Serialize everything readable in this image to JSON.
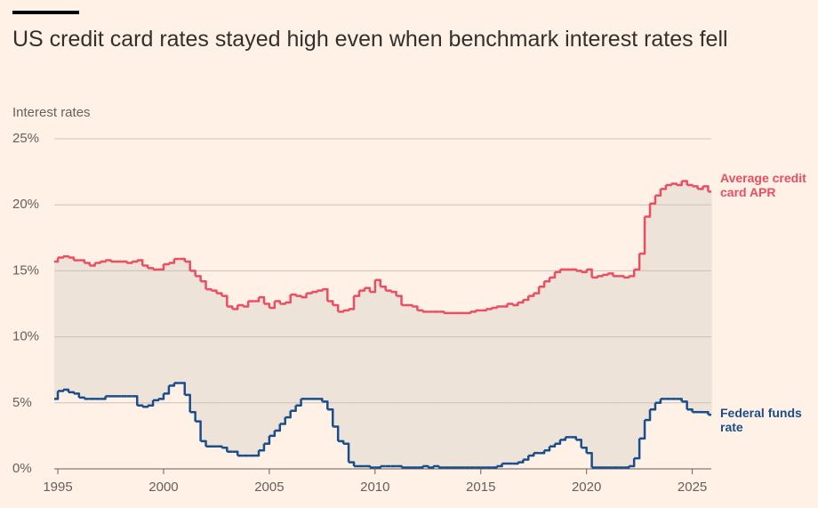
{
  "chart_data": {
    "type": "step",
    "title": "US credit card rates stayed high even when benchmark interest rates fell",
    "y_label": "Interest rates",
    "xlim": [
      1994.83,
      2025.9
    ],
    "xticks": [
      1995,
      2000,
      2005,
      2010,
      2015,
      2020,
      2025
    ],
    "ylim": [
      0,
      25
    ],
    "yticks": [
      {
        "value": 0,
        "label": "0%"
      },
      {
        "value": 5,
        "label": "5%"
      },
      {
        "value": 10,
        "label": "10%"
      },
      {
        "value": 15,
        "label": "15%"
      },
      {
        "value": 20,
        "label": "20%"
      },
      {
        "value": 25,
        "label": "25%"
      }
    ],
    "grid": true,
    "fill_between": "#ede3d9",
    "x_start": 1994.75,
    "x_step": 0.25,
    "series": [
      {
        "name": "Average credit card APR",
        "color": "#eb4d62",
        "values": [
          15.7,
          16.0,
          16.1,
          16.0,
          15.8,
          15.8,
          15.6,
          15.4,
          15.6,
          15.7,
          15.8,
          15.7,
          15.7,
          15.7,
          15.6,
          15.7,
          15.8,
          15.4,
          15.2,
          15.1,
          15.1,
          15.5,
          15.6,
          15.9,
          15.9,
          15.7,
          15.0,
          14.6,
          14.2,
          13.6,
          13.5,
          13.3,
          13.1,
          12.3,
          12.1,
          12.4,
          12.3,
          12.7,
          12.7,
          13.0,
          12.5,
          12.2,
          12.7,
          12.5,
          12.6,
          13.2,
          13.1,
          13.0,
          13.3,
          13.4,
          13.5,
          13.6,
          12.7,
          12.4,
          11.9,
          12.0,
          12.1,
          13.1,
          13.5,
          13.7,
          13.4,
          14.3,
          13.8,
          13.5,
          13.4,
          13.1,
          12.4,
          12.4,
          12.3,
          12.0,
          11.9,
          11.9,
          11.9,
          11.9,
          11.8,
          11.8,
          11.8,
          11.8,
          11.8,
          11.9,
          12.0,
          12.0,
          12.1,
          12.2,
          12.3,
          12.3,
          12.5,
          12.4,
          12.6,
          12.8,
          13.1,
          13.3,
          13.8,
          14.2,
          14.5,
          14.9,
          15.1,
          15.1,
          15.1,
          15.0,
          14.9,
          15.1,
          14.5,
          14.6,
          14.7,
          14.8,
          14.6,
          14.6,
          14.5,
          14.6,
          15.1,
          16.3,
          19.1,
          20.1,
          20.7,
          21.2,
          21.5,
          21.6,
          21.5,
          21.8,
          21.5,
          21.4,
          21.2,
          21.4,
          21.0
        ]
      },
      {
        "name": "Federal funds rate",
        "color": "#1a4d8c",
        "values": [
          5.3,
          5.9,
          6.0,
          5.8,
          5.7,
          5.4,
          5.3,
          5.3,
          5.3,
          5.3,
          5.5,
          5.5,
          5.5,
          5.5,
          5.5,
          5.5,
          4.8,
          4.7,
          4.8,
          5.2,
          5.3,
          5.7,
          6.3,
          6.5,
          6.5,
          5.6,
          4.3,
          3.6,
          2.1,
          1.7,
          1.7,
          1.7,
          1.6,
          1.3,
          1.3,
          1.0,
          1.0,
          1.0,
          1.0,
          1.4,
          1.9,
          2.5,
          2.9,
          3.4,
          3.9,
          4.4,
          4.8,
          5.3,
          5.3,
          5.3,
          5.3,
          5.1,
          4.5,
          3.2,
          2.1,
          1.9,
          0.5,
          0.2,
          0.2,
          0.2,
          0.1,
          0.1,
          0.2,
          0.2,
          0.2,
          0.2,
          0.1,
          0.1,
          0.1,
          0.1,
          0.2,
          0.1,
          0.2,
          0.1,
          0.1,
          0.1,
          0.1,
          0.1,
          0.1,
          0.1,
          0.1,
          0.1,
          0.1,
          0.1,
          0.2,
          0.4,
          0.4,
          0.4,
          0.5,
          0.7,
          1.0,
          1.2,
          1.2,
          1.4,
          1.7,
          1.9,
          2.2,
          2.4,
          2.4,
          2.2,
          1.6,
          1.2,
          0.1,
          0.1,
          0.1,
          0.1,
          0.1,
          0.1,
          0.1,
          0.2,
          0.8,
          2.3,
          3.7,
          4.5,
          5.0,
          5.3,
          5.3,
          5.3,
          5.3,
          5.1,
          4.5,
          4.3,
          4.3,
          4.3,
          4.1
        ]
      }
    ]
  }
}
